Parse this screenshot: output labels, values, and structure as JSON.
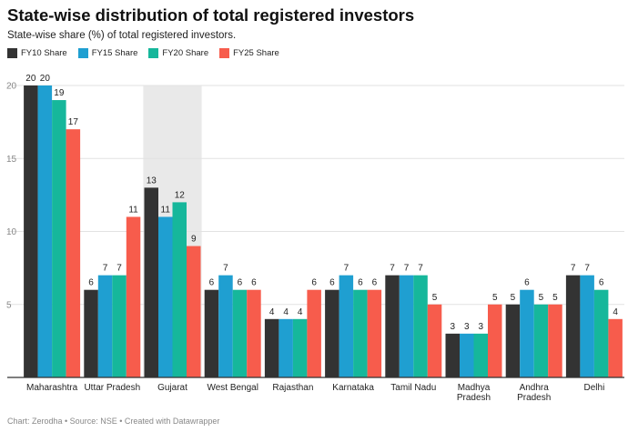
{
  "header": {
    "title": "State-wise distribution of total registered investors",
    "subtitle": "State-wise share (%) of total registered investors."
  },
  "legend": [
    {
      "label": "FY10 Share",
      "color": "#333333"
    },
    {
      "label": "FY15 Share",
      "color": "#1f9fd1"
    },
    {
      "label": "FY20 Share",
      "color": "#16b79b"
    },
    {
      "label": "FY25 Share",
      "color": "#f75c4c"
    }
  ],
  "footer": {
    "text": "Chart: Zerodha • Source: NSE • Created with Datawrapper"
  },
  "chart_data": {
    "type": "bar",
    "title": "State-wise distribution of total registered investors",
    "subtitle": "State-wise share (%) of total registered investors.",
    "xlabel": "",
    "ylabel": "",
    "ylim": [
      0,
      20
    ],
    "yticks": [
      5,
      10,
      15,
      20
    ],
    "grid": true,
    "legend_position": "top-left",
    "highlight_category": "Gujarat",
    "categories": [
      [
        "Maharashtra"
      ],
      [
        "Uttar Pradesh"
      ],
      [
        "Gujarat"
      ],
      [
        "West Bengal"
      ],
      [
        "Rajasthan"
      ],
      [
        "Karnataka"
      ],
      [
        "Tamil Nadu"
      ],
      [
        "Madhya",
        "Pradesh"
      ],
      [
        "Andhra",
        "Pradesh"
      ],
      [
        "Delhi"
      ]
    ],
    "series": [
      {
        "name": "FY10 Share",
        "color": "#333333",
        "values": [
          20,
          6,
          13,
          6,
          4,
          6,
          7,
          3,
          5,
          7
        ]
      },
      {
        "name": "FY15 Share",
        "color": "#1f9fd1",
        "values": [
          20,
          7,
          11,
          7,
          4,
          7,
          7,
          3,
          6,
          7
        ]
      },
      {
        "name": "FY20 Share",
        "color": "#16b79b",
        "values": [
          19,
          7,
          12,
          6,
          4,
          6,
          7,
          3,
          5,
          6
        ]
      },
      {
        "name": "FY25 Share",
        "color": "#f75c4c",
        "values": [
          17,
          11,
          9,
          6,
          6,
          6,
          5,
          5,
          5,
          4
        ]
      }
    ]
  }
}
